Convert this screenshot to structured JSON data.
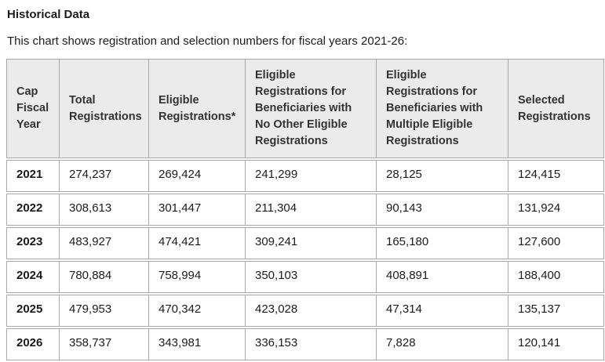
{
  "page": {
    "title": "Historical Data",
    "subtitle": "This chart shows registration and selection numbers for fiscal years 2021-26:"
  },
  "table": {
    "headers": [
      "Cap Fiscal Year",
      "Total Registrations",
      "Eligible Registrations*",
      "Eligible Registrations for Beneficiaries with No Other Eligible Registrations",
      "Eligible Registrations for Beneficiaries with Multiple Eligible Registrations",
      "Selected Registrations"
    ],
    "rows": [
      {
        "cells": [
          "2021",
          "274,237",
          "269,424",
          "241,299",
          "28,125",
          "124,415"
        ]
      },
      {
        "cells": [
          "2022",
          "308,613",
          "301,447",
          "211,304",
          "90,143",
          "131,924"
        ]
      },
      {
        "cells": [
          "2023",
          "483,927",
          "474,421",
          "309,241",
          "165,180",
          "127,600"
        ]
      },
      {
        "cells": [
          "2024",
          "780,884",
          "758,994",
          "350,103",
          "408,891",
          "188,400"
        ]
      },
      {
        "cells": [
          "2025",
          "479,953",
          "470,342",
          "423,028",
          "47,314",
          "135,137"
        ]
      },
      {
        "cells": [
          "2026",
          "358,737",
          "343,981",
          "336,153",
          "7,828",
          "120,141"
        ]
      }
    ]
  },
  "chart_data": {
    "type": "table",
    "title": "Historical Data",
    "subtitle": "This chart shows registration and selection numbers for fiscal years 2021-26:",
    "columns": [
      "Cap Fiscal Year",
      "Total Registrations",
      "Eligible Registrations*",
      "Eligible Registrations for Beneficiaries with No Other Eligible Registrations",
      "Eligible Registrations for Beneficiaries with Multiple Eligible Registrations",
      "Selected Registrations"
    ],
    "rows": [
      [
        2021,
        274237,
        269424,
        241299,
        28125,
        124415
      ],
      [
        2022,
        308613,
        301447,
        211304,
        90143,
        131924
      ],
      [
        2023,
        483927,
        474421,
        309241,
        165180,
        127600
      ],
      [
        2024,
        780884,
        758994,
        350103,
        408891,
        188400
      ],
      [
        2025,
        479953,
        470342,
        423028,
        47314,
        135137
      ],
      [
        2026,
        358737,
        343981,
        336153,
        7828,
        120141
      ]
    ]
  },
  "colors": {
    "background": "#ffffff",
    "header_background": "#ebebeb",
    "border": "#a8a8a8",
    "text": "#1b1b1b",
    "header_text": "#333333"
  }
}
